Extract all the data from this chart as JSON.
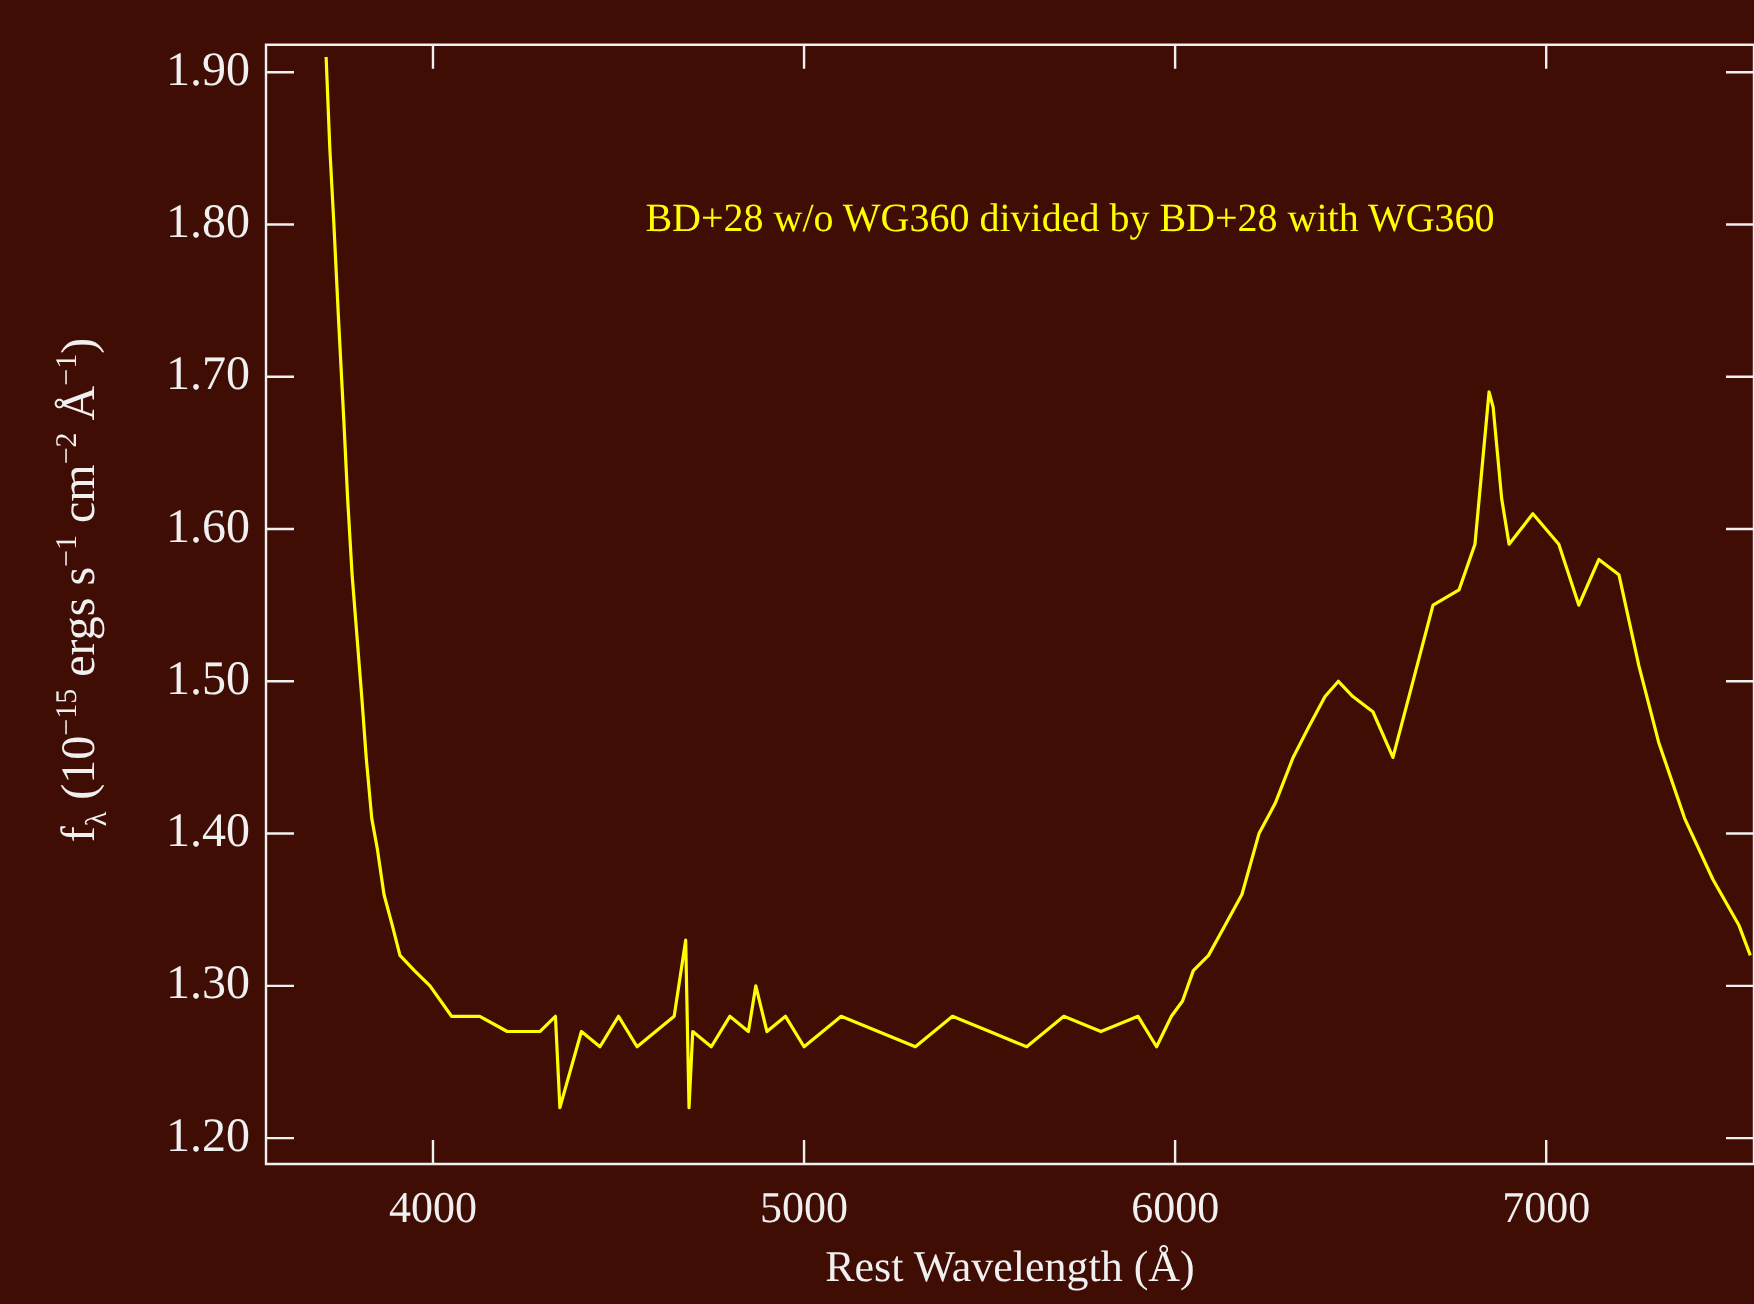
{
  "chart_data": {
    "type": "line",
    "xlabel": "Rest Wavelength (Å)",
    "ylabel": "f$_{λ}$ (10$^{−15}$ ergs s$^{−1}$ cm$^{−2}$ Å$^{−1}$)",
    "annotations": [
      "BD+28 w/o WG360 divided by BD+28 with WG360"
    ],
    "x": [
      3712,
      3722,
      3733,
      3745,
      3760,
      3770,
      3782,
      3795,
      3808,
      3820,
      3835,
      3850,
      3868,
      3890,
      3911,
      3950,
      3992,
      4050,
      4126,
      4200,
      4288,
      4330,
      4342,
      4400,
      4450,
      4500,
      4550,
      4600,
      4650,
      4681,
      4690,
      4700,
      4750,
      4800,
      4850,
      4870,
      4900,
      4950,
      5000,
      5100,
      5200,
      5300,
      5400,
      5500,
      5600,
      5700,
      5800,
      5900,
      5950,
      5990,
      6020,
      6049,
      6090,
      6135,
      6180,
      6226,
      6270,
      6318,
      6360,
      6404,
      6440,
      6479,
      6533,
      6587,
      6641,
      6695,
      6765,
      6808,
      6846,
      6857,
      6880,
      6900,
      6964,
      7034,
      7088,
      7142,
      7196,
      7250,
      7303,
      7373,
      7449,
      7519,
      7550
    ],
    "series": [
      {
        "color": "#ffff00",
        "values": [
          1.91,
          1.85,
          1.8,
          1.74,
          1.67,
          1.62,
          1.57,
          1.53,
          1.49,
          1.45,
          1.41,
          1.39,
          1.36,
          1.34,
          1.32,
          1.31,
          1.3,
          1.28,
          1.28,
          1.27,
          1.27,
          1.28,
          1.22,
          1.27,
          1.26,
          1.28,
          1.26,
          1.27,
          1.28,
          1.33,
          1.22,
          1.27,
          1.26,
          1.28,
          1.27,
          1.3,
          1.27,
          1.28,
          1.26,
          1.28,
          1.27,
          1.26,
          1.28,
          1.27,
          1.26,
          1.28,
          1.27,
          1.28,
          1.26,
          1.28,
          1.29,
          1.31,
          1.32,
          1.34,
          1.36,
          1.4,
          1.42,
          1.45,
          1.47,
          1.49,
          1.5,
          1.49,
          1.48,
          1.45,
          1.5,
          1.55,
          1.56,
          1.59,
          1.69,
          1.68,
          1.62,
          1.59,
          1.61,
          1.59,
          1.55,
          1.58,
          1.57,
          1.51,
          1.46,
          1.41,
          1.37,
          1.34,
          1.32
        ]
      }
    ],
    "xlim": [
      3550,
      7560
    ],
    "xticks": [
      4000,
      5000,
      6000,
      7000
    ],
    "ylim": [
      1.183,
      1.918
    ],
    "yticks": [
      {
        "value": 1.2,
        "label": "1.20"
      },
      {
        "value": 1.3,
        "label": "1.30"
      },
      {
        "value": 1.4,
        "label": "1.40"
      },
      {
        "value": 1.5,
        "label": "1.50"
      },
      {
        "value": 1.6,
        "label": "1.60"
      },
      {
        "value": 1.7,
        "label": "1.70"
      },
      {
        "value": 1.8,
        "label": "1.80"
      },
      {
        "value": 1.9,
        "label": "1.90"
      }
    ],
    "marker": "none",
    "line_style": "solid"
  }
}
